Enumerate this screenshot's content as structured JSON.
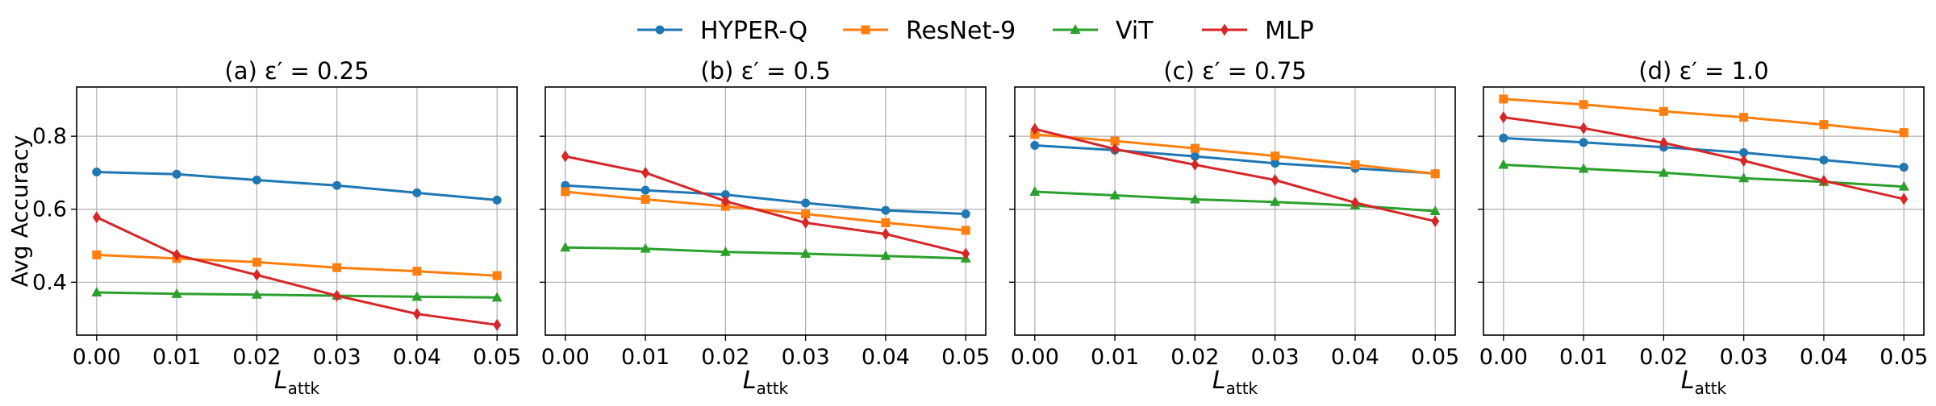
{
  "chart_data": {
    "type": "line",
    "legend": {
      "placement": "top-center",
      "entries": [
        {
          "name": "HYPER-Q",
          "color": "#1f77b4",
          "marker": "circle"
        },
        {
          "name": "ResNet-9",
          "color": "#ff7f0e",
          "marker": "square"
        },
        {
          "name": "ViT",
          "color": "#2ca02c",
          "marker": "triangle"
        },
        {
          "name": "MLP",
          "color": "#d62728",
          "marker": "diamond"
        }
      ]
    },
    "ylabel": "Avg Accuracy",
    "xlabel": {
      "main": "L",
      "sub": "attk"
    },
    "x": [
      0.0,
      0.01,
      0.02,
      0.03,
      0.04,
      0.05
    ],
    "x_tick_labels": [
      "0.00",
      "0.01",
      "0.02",
      "0.03",
      "0.04",
      "0.05"
    ],
    "xlim": [
      -0.0025,
      0.0525
    ],
    "ylim": [
      0.255,
      0.935
    ],
    "y_ticks": [
      0.4,
      0.6,
      0.8
    ],
    "y_tick_labels": [
      "0.4",
      "0.6",
      "0.8"
    ],
    "shared_y": true,
    "grid": true,
    "panels": [
      {
        "title_prefix": "(a) ε′ = ",
        "title_value": "0.25",
        "series": [
          {
            "name": "HYPER-Q",
            "values": [
              0.702,
              0.696,
              0.68,
              0.665,
              0.645,
              0.625
            ]
          },
          {
            "name": "ResNet-9",
            "values": [
              0.475,
              0.465,
              0.455,
              0.44,
              0.43,
              0.418
            ]
          },
          {
            "name": "ViT",
            "values": [
              0.372,
              0.368,
              0.366,
              0.363,
              0.36,
              0.358
            ]
          },
          {
            "name": "MLP",
            "values": [
              0.578,
              0.475,
              0.42,
              0.363,
              0.313,
              0.283
            ]
          }
        ]
      },
      {
        "title_prefix": "(b) ε′ = ",
        "title_value": "0.5",
        "series": [
          {
            "name": "HYPER-Q",
            "values": [
              0.665,
              0.652,
              0.64,
              0.617,
              0.597,
              0.587
            ]
          },
          {
            "name": "ResNet-9",
            "values": [
              0.648,
              0.627,
              0.608,
              0.587,
              0.563,
              0.542
            ]
          },
          {
            "name": "ViT",
            "values": [
              0.495,
              0.492,
              0.483,
              0.478,
              0.472,
              0.465
            ]
          },
          {
            "name": "MLP",
            "values": [
              0.745,
              0.7,
              0.622,
              0.563,
              0.532,
              0.478
            ]
          }
        ]
      },
      {
        "title_prefix": "(c) ε′ = ",
        "title_value": "0.75",
        "series": [
          {
            "name": "HYPER-Q",
            "values": [
              0.775,
              0.762,
              0.745,
              0.726,
              0.712,
              0.698
            ]
          },
          {
            "name": "ResNet-9",
            "values": [
              0.805,
              0.787,
              0.767,
              0.746,
              0.722,
              0.697
            ]
          },
          {
            "name": "ViT",
            "values": [
              0.648,
              0.638,
              0.627,
              0.62,
              0.61,
              0.595
            ]
          },
          {
            "name": "MLP",
            "values": [
              0.82,
              0.765,
              0.722,
              0.68,
              0.618,
              0.567
            ]
          }
        ]
      },
      {
        "title_prefix": "(d) ε′ = ",
        "title_value": "1.0",
        "series": [
          {
            "name": "HYPER-Q",
            "values": [
              0.795,
              0.783,
              0.77,
              0.755,
              0.735,
              0.715
            ]
          },
          {
            "name": "ResNet-9",
            "values": [
              0.902,
              0.887,
              0.868,
              0.852,
              0.832,
              0.81
            ]
          },
          {
            "name": "ViT",
            "values": [
              0.722,
              0.711,
              0.7,
              0.685,
              0.675,
              0.662
            ]
          },
          {
            "name": "MLP",
            "values": [
              0.852,
              0.822,
              0.782,
              0.733,
              0.678,
              0.628
            ]
          }
        ]
      }
    ]
  }
}
